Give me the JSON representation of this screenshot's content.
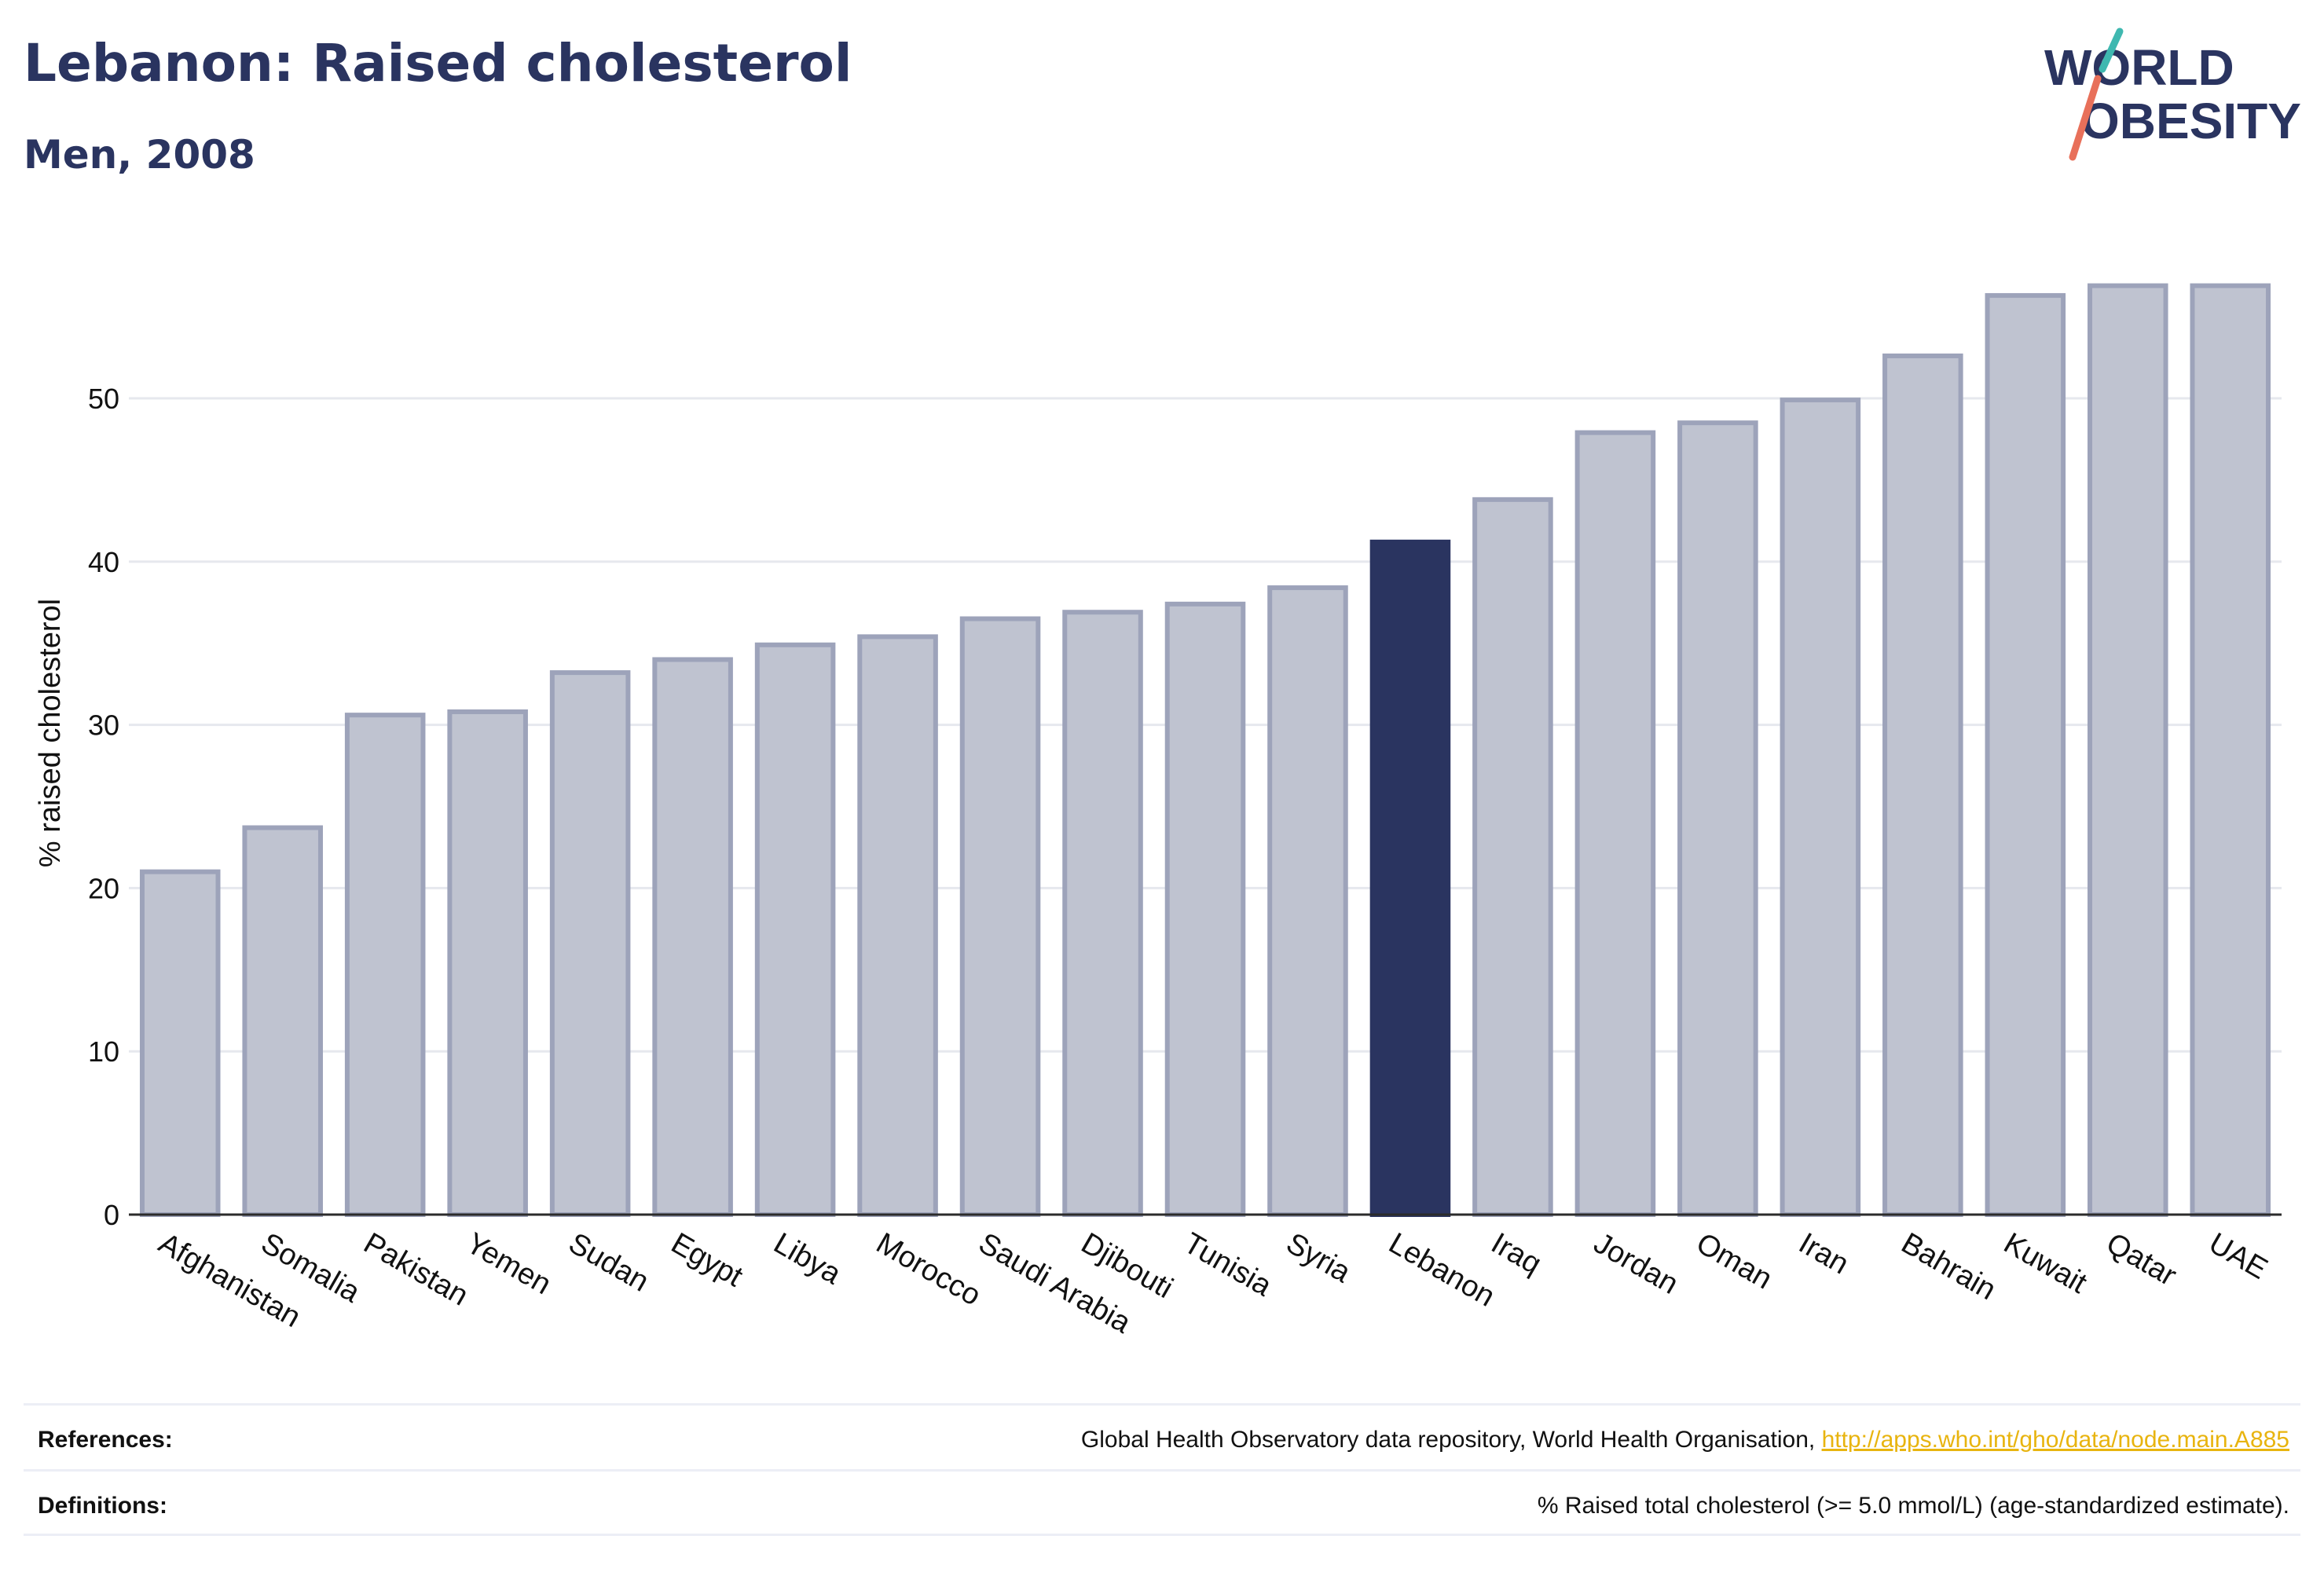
{
  "header": {
    "title": "Lebanon: Raised cholesterol",
    "subtitle": "Men, 2008"
  },
  "logo": {
    "line1": "WORLD",
    "line2": "OBESITY"
  },
  "chart_data": {
    "type": "bar",
    "ylabel": "% raised cholesterol",
    "ylim": [
      0,
      59
    ],
    "yticks": [
      0,
      10,
      20,
      30,
      40,
      50
    ],
    "grid": true,
    "highlight": "Lebanon",
    "colors": {
      "bar_fill": "#bfc3d0",
      "bar_stroke": "#9da3ba",
      "highlight": "#2a3460",
      "grid": "#e6e8ee",
      "axis": "#2b2b2b"
    },
    "categories": [
      "Afghanistan",
      "Somalia",
      "Pakistan",
      "Yemen",
      "Sudan",
      "Egypt",
      "Libya",
      "Morocco",
      "Saudi Arabia",
      "Djibouti",
      "Tunisia",
      "Syria",
      "Lebanon",
      "Iraq",
      "Jordan",
      "Oman",
      "Iran",
      "Bahrain",
      "Kuwait",
      "Qatar",
      "UAE"
    ],
    "values": [
      21.0,
      23.7,
      30.6,
      30.8,
      33.2,
      34.0,
      34.9,
      35.4,
      36.5,
      36.9,
      37.4,
      38.4,
      41.2,
      43.8,
      47.9,
      48.5,
      49.9,
      52.6,
      56.3,
      56.9,
      56.9
    ]
  },
  "footer": {
    "references_label": "References:",
    "references_text": "Global Health Observatory data repository, World Health Organisation, ",
    "references_link": "http://apps.who.int/gho/data/node.main.A885",
    "definitions_label": "Definitions:",
    "definitions_text": "% Raised total cholesterol (>= 5.0 mmol/L) (age-standardized estimate)."
  }
}
